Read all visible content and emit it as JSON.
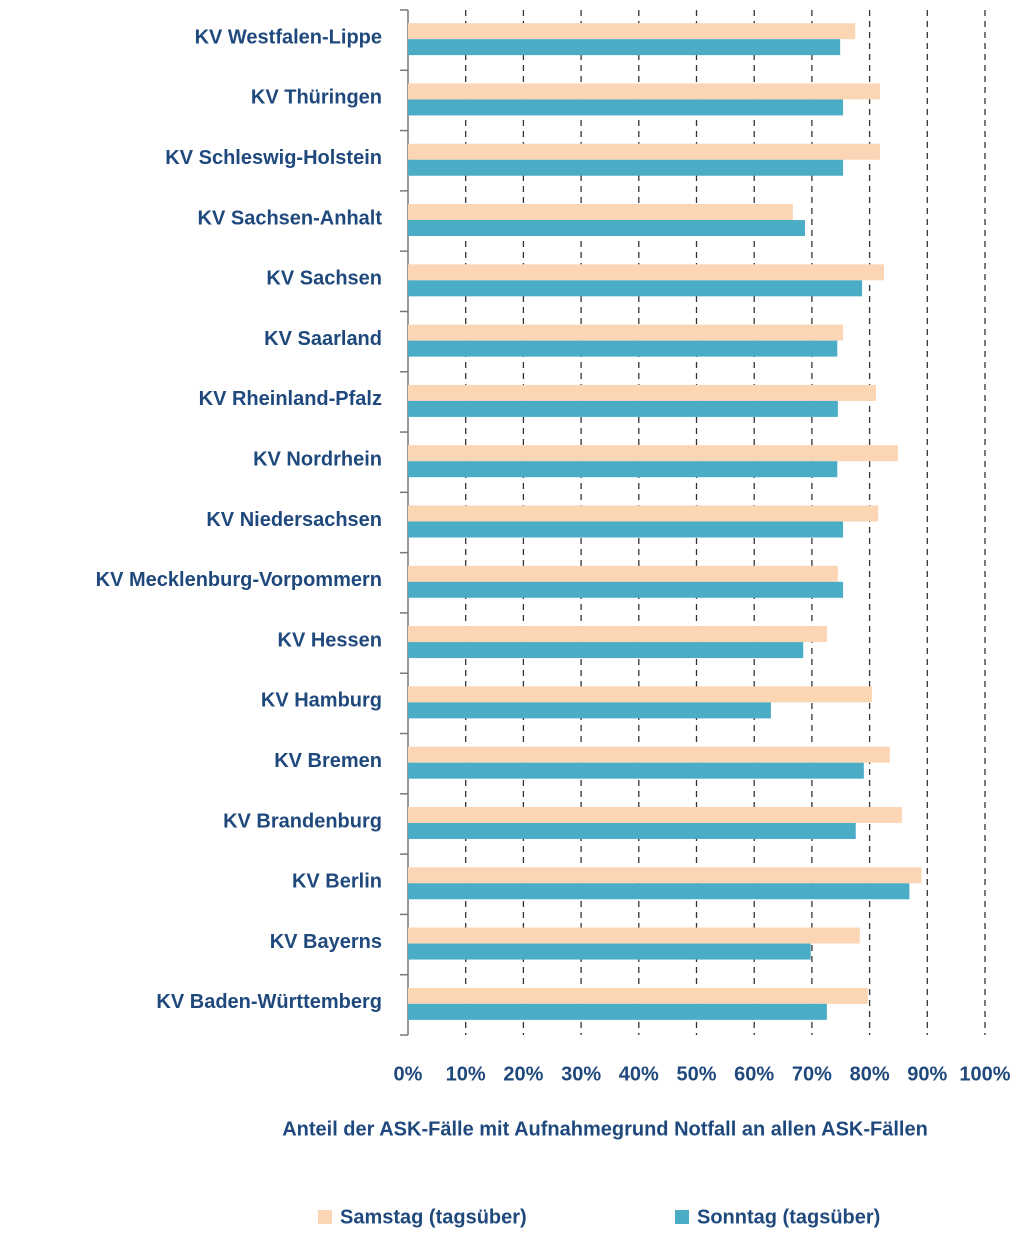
{
  "chart_data": {
    "type": "bar",
    "orientation": "horizontal",
    "categories": [
      "KV Westfalen-Lippe",
      "KV Thüringen",
      "KV Schleswig-Holstein",
      "KV Sachsen-Anhalt",
      "KV Sachsen",
      "KV Saarland",
      "KV Rheinland-Pfalz",
      "KV Nordrhein",
      "KV Niedersachsen",
      "KV Mecklenburg-Vorpommern",
      "KV Hessen",
      "KV Hamburg",
      "KV Bremen",
      "KV Brandenburg",
      "KV Berlin",
      "KV Bayerns",
      "KV Baden-Württemberg"
    ],
    "series": [
      {
        "name": "Samstag (tagsüber)",
        "color": "#fcd5b5",
        "values": [
          77.5,
          81.8,
          81.8,
          66.7,
          82.5,
          75.4,
          81.1,
          84.9,
          81.5,
          74.5,
          72.6,
          80.4,
          83.5,
          85.6,
          89,
          78.3,
          79.7
        ]
      },
      {
        "name": "Sonntag (tagsüber)",
        "color": "#4bacc6",
        "values": [
          74.9,
          75.4,
          75.4,
          68.8,
          78.7,
          74.4,
          74.5,
          74.4,
          75.4,
          75.4,
          68.5,
          62.9,
          79,
          77.6,
          86.9,
          69.8,
          72.6
        ]
      }
    ],
    "x_label": "Anteil der ASK-Fälle mit Aufnahmegrund Notfall an allen ASK-Fällen",
    "xlim": [
      0,
      100
    ],
    "xticks": [
      {
        "value": 0,
        "label": "0%"
      },
      {
        "value": 10,
        "label": "10%"
      },
      {
        "value": 20,
        "label": "20%"
      },
      {
        "value": 30,
        "label": "30%"
      },
      {
        "value": 40,
        "label": "40%"
      },
      {
        "value": 50,
        "label": "50%"
      },
      {
        "value": 60,
        "label": "60%"
      },
      {
        "value": 70,
        "label": "70%"
      },
      {
        "value": 80,
        "label": "80%"
      },
      {
        "value": 90,
        "label": "90%"
      },
      {
        "value": 100,
        "label": "100%"
      }
    ],
    "grid": true,
    "legend": "bottom"
  }
}
